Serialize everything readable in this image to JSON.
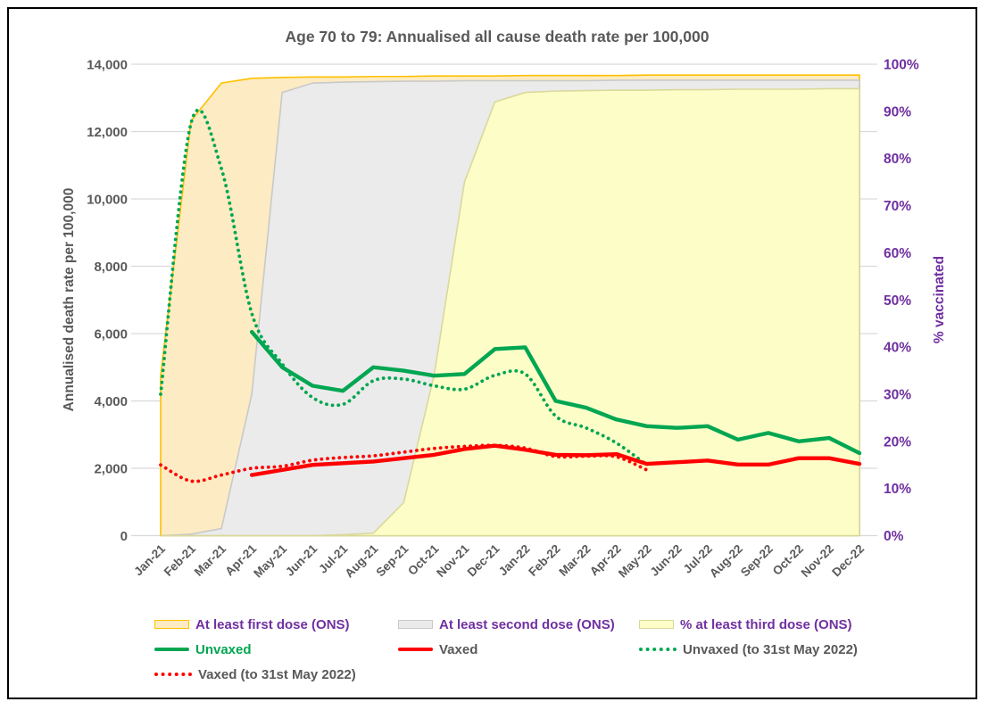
{
  "title": "Age 70 to 79: Annualised all cause death rate per 100,000",
  "y_axis_left": {
    "title": "Annualised death rate per 100,000",
    "min": 0,
    "max": 14000,
    "step": 2000,
    "tick_labels": [
      "0",
      "2,000",
      "4,000",
      "6,000",
      "8,000",
      "10,000",
      "12,000",
      "14,000"
    ]
  },
  "y_axis_right": {
    "title": "% vaccinated",
    "min": 0,
    "max": 100,
    "step": 10,
    "tick_labels": [
      "0%",
      "10%",
      "20%",
      "30%",
      "40%",
      "50%",
      "60%",
      "70%",
      "80%",
      "90%",
      "100%"
    ]
  },
  "colors": {
    "title_text": "#595959",
    "axis_text": "#595959",
    "right_axis_text": "#7030A0",
    "gridline": "#D9D9D9",
    "green": "#00A651",
    "red": "#FF0000",
    "purple": "#7030A0",
    "area_first_fill": "#FCEBC3",
    "area_first_border": "#FFC000",
    "area_second_fill": "#EBEBEB",
    "area_second_border": "#C9C9C9",
    "area_third_fill": "#FDFDC8",
    "area_third_border": "#D9D99B"
  },
  "chart_data": {
    "type": "area+line combo",
    "categories": [
      "Jan-21",
      "Feb-21",
      "Mar-21",
      "Apr-21",
      "May-21",
      "Jun-21",
      "Jul-21",
      "Aug-21",
      "Sep-21",
      "Oct-21",
      "Nov-21",
      "Dec-21",
      "Jan-22",
      "Feb-22",
      "Mar-22",
      "Apr-22",
      "May-22",
      "Jun-22",
      "Jul-22",
      "Aug-22",
      "Sep-22",
      "Oct-22",
      "Nov-22",
      "Dec-22"
    ],
    "legend_position": "bottom",
    "grid": "horizontal only",
    "series": [
      {
        "name": "At least first dose (ONS)",
        "type": "area",
        "axis": "right",
        "unit": "%",
        "fill": "#FCEBC3",
        "border": "#FFC000",
        "values": [
          34,
          88,
          96,
          97,
          97.2,
          97.3,
          97.3,
          97.4,
          97.4,
          97.5,
          97.5,
          97.5,
          97.6,
          97.6,
          97.6,
          97.6,
          97.7,
          97.7,
          97.7,
          97.7,
          97.7,
          97.7,
          97.7,
          97.7
        ]
      },
      {
        "name": "At least second dose (ONS)",
        "type": "area",
        "axis": "right",
        "unit": "%",
        "fill": "#EBEBEB",
        "border": "#C9C9C9",
        "values": [
          0,
          0.3,
          1.5,
          30,
          94,
          96,
          96.2,
          96.3,
          96.4,
          96.4,
          96.5,
          96.5,
          96.5,
          96.5,
          96.5,
          96.6,
          96.6,
          96.6,
          96.6,
          96.6,
          96.6,
          96.6,
          96.6,
          96.6
        ]
      },
      {
        "name": "% at least third dose (ONS)",
        "type": "area",
        "axis": "right",
        "unit": "%",
        "fill": "#FDFDC8",
        "border": "#D9D99B",
        "values": [
          0,
          0,
          0,
          0,
          0,
          0,
          0.2,
          0.5,
          7,
          34,
          75,
          92,
          94,
          94.3,
          94.4,
          94.5,
          94.5,
          94.6,
          94.6,
          94.7,
          94.7,
          94.7,
          94.8,
          94.8
        ]
      },
      {
        "name": "Unvaxed (to 31st May 2022)",
        "type": "line",
        "style": "dotted",
        "smooth": true,
        "axis": "left",
        "color": "#00A651",
        "values": [
          4200,
          12250,
          10900,
          6600,
          5100,
          4100,
          3900,
          4600,
          4650,
          4450,
          4350,
          4760,
          4800,
          3550,
          3200,
          2750,
          2100,
          null,
          null,
          null,
          null,
          null,
          null,
          null
        ]
      },
      {
        "name": "Vaxed (to 31st May 2022)",
        "type": "line",
        "style": "dotted",
        "smooth": true,
        "axis": "left",
        "color": "#FF0000",
        "values": [
          2100,
          1620,
          1800,
          2000,
          2060,
          2240,
          2320,
          2370,
          2480,
          2590,
          2650,
          2680,
          2600,
          2350,
          2360,
          2340,
          1950,
          null,
          null,
          null,
          null,
          null,
          null,
          null
        ]
      },
      {
        "name": "Unvaxed",
        "type": "line",
        "style": "solid",
        "smooth": false,
        "axis": "left",
        "color": "#00A651",
        "values": [
          null,
          null,
          null,
          6050,
          5000,
          4450,
          4300,
          5000,
          4900,
          4750,
          4800,
          5540,
          5590,
          4000,
          3800,
          3450,
          3250,
          3200,
          3250,
          2850,
          3050,
          2800,
          2900,
          2450
        ]
      },
      {
        "name": "Vaxed",
        "type": "line",
        "style": "solid",
        "smooth": false,
        "axis": "left",
        "color": "#FF0000",
        "values": [
          null,
          null,
          null,
          1800,
          1950,
          2100,
          2150,
          2200,
          2300,
          2400,
          2570,
          2670,
          2550,
          2400,
          2390,
          2420,
          2130,
          2180,
          2230,
          2110,
          2110,
          2300,
          2300,
          2130
        ]
      }
    ]
  },
  "legend": {
    "items": [
      {
        "label": "At least first dose (ONS)",
        "label_color": "#7030A0",
        "swatch": "area",
        "fill": "#FCEBC3",
        "border": "#FFC000",
        "row": 0,
        "col": 0
      },
      {
        "label": "At least second dose (ONS)",
        "label_color": "#7030A0",
        "swatch": "area",
        "fill": "#EBEBEB",
        "border": "#C9C9C9",
        "row": 0,
        "col": 1
      },
      {
        "label": "% at least third dose (ONS)",
        "label_color": "#7030A0",
        "swatch": "area",
        "fill": "#FDFDC8",
        "border": "#D9D99B",
        "row": 0,
        "col": 2
      },
      {
        "label": "Unvaxed",
        "label_color": "#00A651",
        "swatch": "line",
        "fill": "#00A651",
        "border": "#00A651",
        "row": 1,
        "col": 0
      },
      {
        "label": "Vaxed",
        "label_color": "#595959",
        "swatch": "line",
        "fill": "#FF0000",
        "border": "#FF0000",
        "row": 1,
        "col": 1
      },
      {
        "label": "Unvaxed (to 31st May 2022)",
        "label_color": "#595959",
        "swatch": "dot",
        "fill": "#00A651",
        "border": "#00A651",
        "row": 1,
        "col": 2
      },
      {
        "label": "Vaxed (to 31st May 2022)",
        "label_color": "#595959",
        "swatch": "dot",
        "fill": "#FF0000",
        "border": "#FF0000",
        "row": 2,
        "col": 0
      }
    ]
  }
}
